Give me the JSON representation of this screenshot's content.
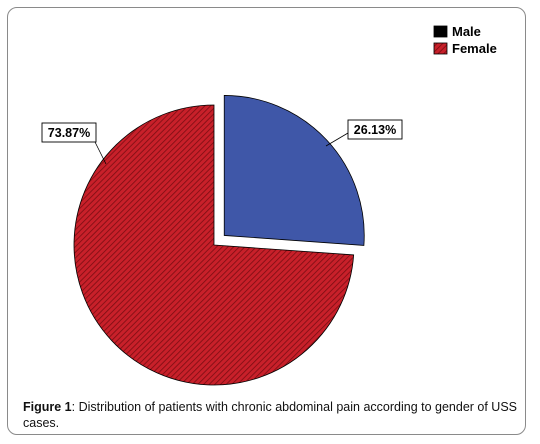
{
  "chart_data": {
    "type": "pie",
    "slices": [
      {
        "name": "Male",
        "value": 26.13,
        "label": "26.13%",
        "color": "#3F57A8"
      },
      {
        "name": "Female",
        "value": 73.87,
        "label": "73.87%",
        "color": "#C8202A"
      }
    ],
    "exploded": "Male",
    "legend_position": "top-right",
    "female_pattern": "diagonal-hatch"
  },
  "caption": {
    "prefix": "Figure 1",
    "text": ": Distribution of patients with chronic abdominal pain according to gender of USS cases."
  }
}
